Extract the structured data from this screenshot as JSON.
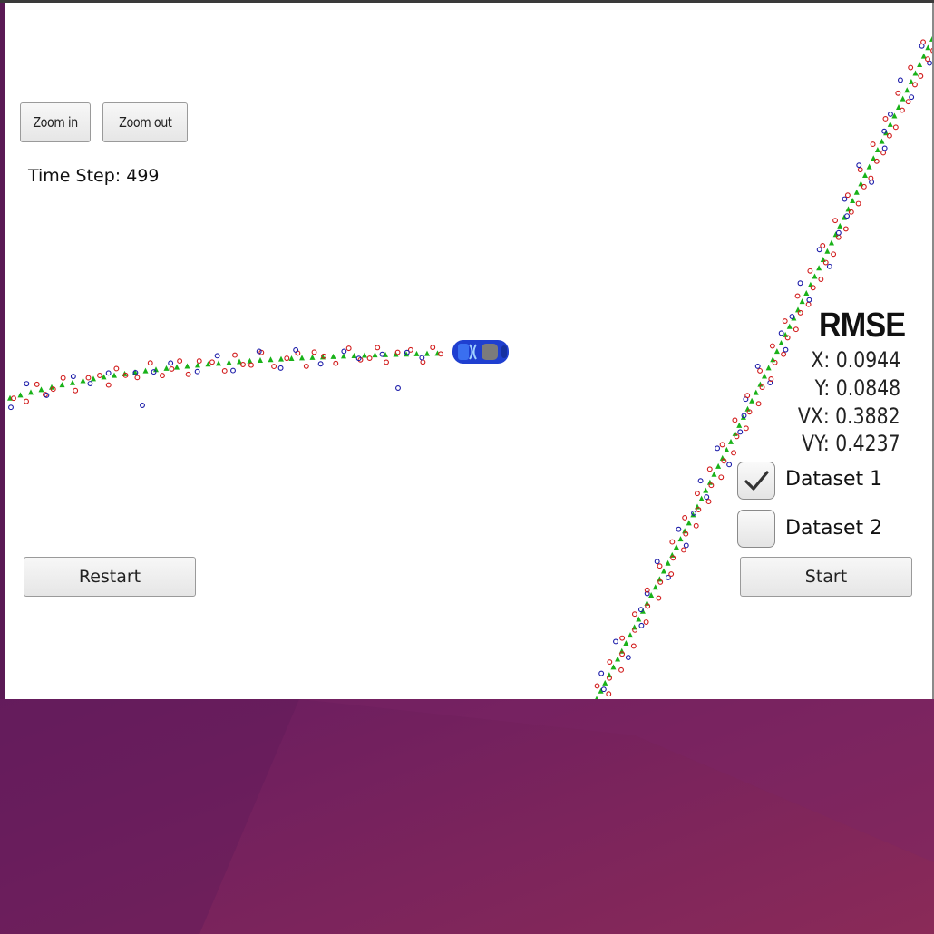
{
  "controls": {
    "zoom_in": "Zoom in",
    "zoom_out": "Zoom out",
    "restart": "Restart",
    "start": "Start"
  },
  "status": {
    "time_step": "Time Step: 499"
  },
  "rmse": {
    "title": "RMSE",
    "x": "X: 0.0944",
    "y": "Y: 0.0848",
    "vx": "VX: 0.3882",
    "vy": "VY: 0.4237"
  },
  "datasets": [
    {
      "label": "Dataset 1",
      "checked": true
    },
    {
      "label": "Dataset 2",
      "checked": false
    }
  ],
  "colors": {
    "ground_truth": "#19b219",
    "lidar": "#1a1aa8",
    "radar": "#d11a1a",
    "car": "#1f3fd0",
    "desktop": "#6a1f62"
  },
  "icons": {
    "car": "car-icon",
    "check": "checkmark-icon"
  }
}
